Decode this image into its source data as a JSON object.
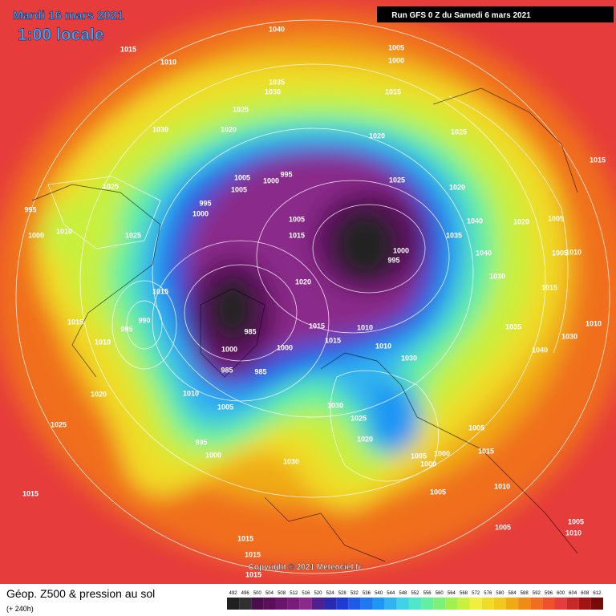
{
  "map": {
    "date": "Mardi 16 mars 2021",
    "time": "1:00 locale",
    "run": "Run GFS 0 Z du Samedi 6 mars 2021",
    "copyright": "Copyright © 2021 Meteociel.fr",
    "title": "Géop. Z500 & pression au sol",
    "lead": "(+ 240h)",
    "scale": [
      492,
      496,
      500,
      504,
      508,
      512,
      516,
      520,
      524,
      528,
      532,
      536,
      540,
      544,
      548,
      552,
      556,
      560,
      564,
      568,
      572,
      576,
      580,
      584,
      588,
      592,
      596,
      600,
      604,
      608,
      612
    ],
    "scale_colors": [
      "#202020",
      "#303030",
      "#4a0f4a",
      "#5b0f5b",
      "#6b146b",
      "#7a1a7a",
      "#8a2a8a",
      "#502090",
      "#2a2ab0",
      "#1e3cd2",
      "#1e5ae6",
      "#1e78f0",
      "#1e96f5",
      "#30b4f0",
      "#40d2e6",
      "#50e6c8",
      "#60f0a0",
      "#7cf078",
      "#a0f050",
      "#c8f03c",
      "#f0f03c",
      "#f0dc28",
      "#f0c81e",
      "#f0aa14",
      "#f08c14",
      "#f06e1e",
      "#f0502a",
      "#e63c3c",
      "#c82828",
      "#a01414",
      "#780a0a"
    ],
    "pressure_labels": [
      1040,
      1015,
      1010,
      1005,
      1000,
      1035,
      1030,
      1015,
      1025,
      1030,
      1020,
      1020,
      1025,
      1015,
      995,
      1000,
      1005,
      1005,
      1025,
      1025,
      1020,
      995,
      1000,
      995,
      1005,
      1040,
      1020,
      1005,
      1010,
      1000,
      1025,
      1015,
      1035,
      1040,
      1000,
      995,
      1005,
      1010,
      1030,
      1020,
      1015,
      1015,
      990,
      995,
      1015,
      1010,
      1015,
      1035,
      1030,
      1010,
      985,
      1015,
      1010,
      1030,
      1040,
      985,
      985,
      1010,
      1020,
      1005,
      1030,
      1025,
      1020,
      1025,
      1005,
      995,
      1000,
      1005,
      1000,
      1000,
      1015,
      1030,
      1015,
      1005,
      1010,
      1005,
      1015,
      1015,
      1010,
      1005,
      1000,
      1000,
      1010,
      1015
    ]
  }
}
